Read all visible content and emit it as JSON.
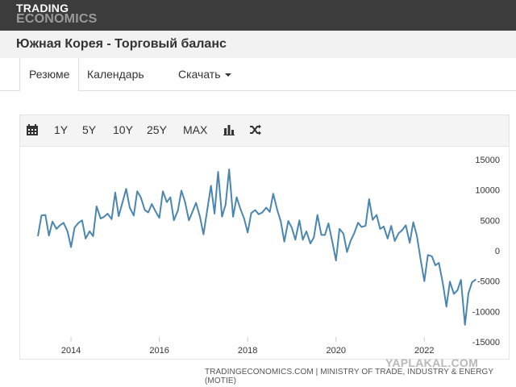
{
  "header": {
    "logo_line1": "TRADING",
    "logo_line2": "ECONOMICS"
  },
  "page_title": "Южная Корея - Торговый баланс",
  "tabs": [
    {
      "label": "Резюме",
      "active": true
    },
    {
      "label": "Календарь",
      "active": false
    },
    {
      "label": "Скачать",
      "active": false
    }
  ],
  "toolbar": {
    "calendar_icon": "calendar-icon",
    "ranges": [
      "1Y",
      "5Y",
      "10Y",
      "25Y",
      "MAX"
    ],
    "bar_icon": "bar-chart-icon",
    "shuffle_icon": "shuffle-icon"
  },
  "chart_data": {
    "type": "line",
    "y_ticks": [
      15000,
      10000,
      5000,
      0,
      -5000,
      -10000,
      -15000
    ],
    "x_ticks": [
      "2014",
      "2016",
      "2018",
      "2020",
      "2022"
    ],
    "ylim": [
      -15000,
      15000
    ],
    "xlim": [
      2013.25,
      2023.2
    ],
    "grid": false,
    "line_color": "#4a86b0",
    "series": [
      {
        "x": [
          2013.25,
          2013.33,
          2013.42,
          2013.5,
          2013.58,
          2013.67,
          2013.75,
          2013.83,
          2013.92,
          2014.0,
          2014.08,
          2014.17,
          2014.25,
          2014.33,
          2014.42,
          2014.5,
          2014.58,
          2014.67,
          2014.75,
          2014.83,
          2014.92,
          2015.0,
          2015.08,
          2015.17,
          2015.25,
          2015.33,
          2015.42,
          2015.5,
          2015.58,
          2015.67,
          2015.75,
          2015.83,
          2015.92,
          2016.0,
          2016.08,
          2016.17,
          2016.25,
          2016.33,
          2016.42,
          2016.5,
          2016.58,
          2016.67,
          2016.75,
          2016.83,
          2016.92,
          2017.0,
          2017.08,
          2017.17,
          2017.25,
          2017.33,
          2017.42,
          2017.5,
          2017.58,
          2017.67,
          2017.75,
          2017.83,
          2017.92,
          2018.0,
          2018.08,
          2018.17,
          2018.25,
          2018.33,
          2018.42,
          2018.5,
          2018.58,
          2018.67,
          2018.75,
          2018.83,
          2018.92,
          2019.0,
          2019.08,
          2019.17,
          2019.25,
          2019.33,
          2019.42,
          2019.5,
          2019.58,
          2019.67,
          2019.75,
          2019.83,
          2019.92,
          2020.0,
          2020.08,
          2020.17,
          2020.25,
          2020.33,
          2020.42,
          2020.5,
          2020.58,
          2020.67,
          2020.75,
          2020.83,
          2020.92,
          2021.0,
          2021.08,
          2021.17,
          2021.25,
          2021.33,
          2021.42,
          2021.5,
          2021.58,
          2021.67,
          2021.75,
          2021.83,
          2021.92,
          2022.0,
          2022.08,
          2022.17,
          2022.25,
          2022.33,
          2022.42,
          2022.5,
          2022.58,
          2022.67,
          2022.75,
          2022.83,
          2022.92,
          2023.0,
          2023.08,
          2023.17
        ],
        "values": [
          2400,
          5800,
          5900,
          2500,
          4800,
          3600,
          4200,
          4600,
          3200,
          600,
          3800,
          4600,
          5000,
          2000,
          3200,
          2400,
          7300,
          5300,
          5600,
          6100,
          5200,
          9600,
          5700,
          8100,
          10200,
          7100,
          5800,
          9800,
          8800,
          6700,
          6300,
          7700,
          6400,
          5400,
          9800,
          8000,
          8800,
          5000,
          6600,
          9900,
          8100,
          5000,
          6400,
          7900,
          5600,
          2700,
          6500,
          10700,
          6100,
          13000,
          5600,
          7600,
          13400,
          5600,
          8800,
          7000,
          5300,
          3000,
          6200,
          6700,
          6000,
          6300,
          7100,
          6400,
          9400,
          6700,
          4800,
          1500,
          4900,
          3800,
          1800,
          5000,
          1800,
          3200,
          1200,
          2200,
          5900,
          2600,
          2600,
          4500,
          1400,
          -1600,
          3600,
          2800,
          -200,
          1600,
          3000,
          4600,
          3900,
          4100,
          8500,
          5100,
          5900,
          3600,
          4000,
          2000,
          4100,
          1600,
          2900,
          3400,
          4200,
          1300,
          4700,
          2500,
          -1600,
          -5000,
          -700,
          -900,
          -2400,
          -2000,
          -5400,
          -9200,
          -5100,
          -7100,
          -6500,
          -4800,
          -12200,
          -7000,
          -5200,
          -4700
        ]
      }
    ]
  },
  "source_text": "TRADINGECONOMICS.COM | MINISTRY OF TRADE, INDUSTRY & ENERGY (MOTIE)",
  "watermark": "YAPLAKAL.COM"
}
